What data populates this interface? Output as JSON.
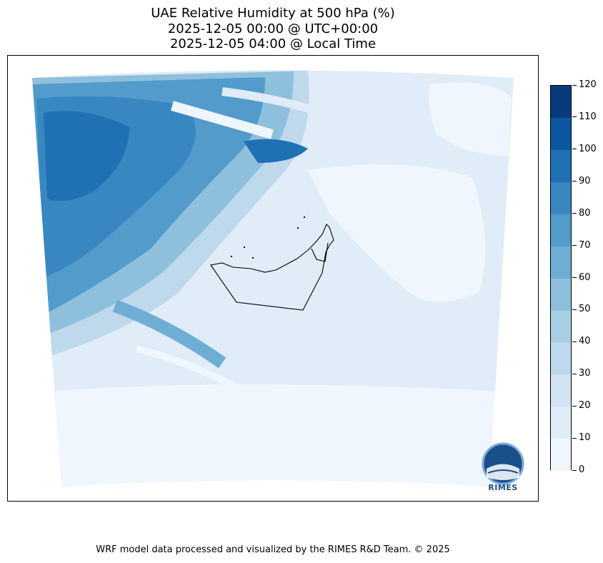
{
  "title": {
    "line1": "UAE Relative Humidity at 500 hPa (%)",
    "line2": "2025-12-05 00:00 @ UTC+00:00",
    "line3": "2025-12-05 04:00 @ Local Time"
  },
  "colorbar": {
    "levels": [
      0,
      10,
      20,
      30,
      40,
      50,
      60,
      70,
      80,
      90,
      100,
      110,
      120
    ],
    "labels": [
      "0",
      "10",
      "20",
      "30",
      "40",
      "50",
      "60",
      "70",
      "80",
      "90",
      "100",
      "110",
      "120"
    ],
    "colors": [
      "#f0f6fd",
      "#e0ecf7",
      "#d1e2f2",
      "#bed8ec",
      "#a8cfe4",
      "#8ebfdc",
      "#6eaed5",
      "#529bcb",
      "#3987c0",
      "#2070b4",
      "#0d57a0",
      "#083b7c"
    ]
  },
  "logo": {
    "text": "RIMES"
  },
  "footer": {
    "text": "WRF model data processed and visualized by the RIMES R&D Team. © 2025"
  }
}
